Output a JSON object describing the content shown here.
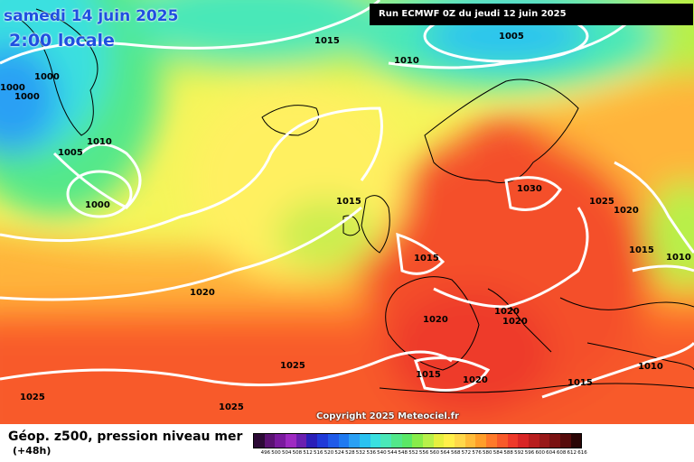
{
  "title_date": "samedi 14 juin 2025",
  "title_time": "2:00 locale",
  "run_info": "Run ECMWF 0Z du jeudi 12 juin 2025",
  "copyright": "Copyright 2025 Meteociel.fr",
  "footer": {
    "title": "Géop. z500, pression niveau mer",
    "forecast_hour": "(+48h)"
  },
  "isobar_labels": [
    "1015",
    "1005",
    "1010",
    "1000",
    "1000",
    "1000",
    "1005",
    "1000",
    "1010",
    "1015",
    "1030",
    "1025",
    "1020",
    "1015",
    "1010",
    "1015",
    "1020",
    "1020",
    "1020",
    "1020",
    "1025",
    "1015",
    "1020",
    "1025",
    "1025",
    "1010",
    "1015"
  ],
  "scale": {
    "labels": [
      "496",
      "500",
      "504",
      "508",
      "512",
      "516",
      "520",
      "524",
      "528",
      "532",
      "536",
      "540",
      "544",
      "548",
      "552",
      "556",
      "560",
      "564",
      "568",
      "572",
      "576",
      "580",
      "584",
      "588",
      "592",
      "596",
      "600",
      "604",
      "608",
      "612",
      "616"
    ],
    "colors": [
      "#2c0a36",
      "#5a1272",
      "#7a1a9e",
      "#9e2ac2",
      "#6a1fb0",
      "#2a1fb8",
      "#1f3ad8",
      "#1f5ae8",
      "#1f7af0",
      "#2aa0f4",
      "#2ac2f0",
      "#3ae0e0",
      "#4ae8b8",
      "#52e88a",
      "#5ae866",
      "#88ec4a",
      "#b8f04a",
      "#e6f040",
      "#fff04a",
      "#ffd84a",
      "#ffbc3a",
      "#ff9e2a",
      "#ff7a2a",
      "#f85a2a",
      "#ee3a2a",
      "#d82626",
      "#b81e1e",
      "#981818",
      "#7a1212",
      "#560c0c",
      "#2a0606"
    ]
  }
}
